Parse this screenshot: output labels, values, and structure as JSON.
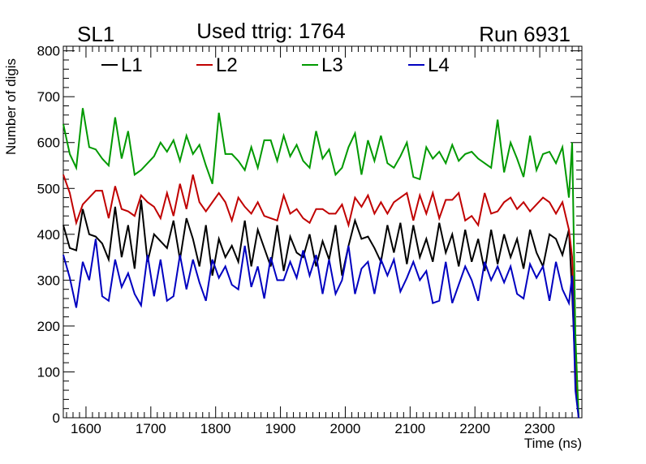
{
  "header": {
    "left": "SL1",
    "center": "Used ttrig: 1764",
    "right": "Run 6931"
  },
  "chart_data": {
    "type": "line",
    "title": "Used ttrig: 1764",
    "xlabel": "Time (ns)",
    "ylabel": "Number of digis",
    "xlim": [
      1565,
      2365
    ],
    "ylim": [
      0,
      810
    ],
    "x_ticks": [
      1600,
      1700,
      1800,
      1900,
      2000,
      2100,
      2200,
      2300
    ],
    "y_ticks": [
      0,
      100,
      200,
      300,
      400,
      500,
      600,
      700,
      800
    ],
    "grid": false,
    "legend": {
      "placement": "top-left"
    },
    "x": [
      1565,
      1575,
      1585,
      1595,
      1605,
      1615,
      1625,
      1635,
      1645,
      1655,
      1665,
      1675,
      1685,
      1695,
      1705,
      1715,
      1725,
      1735,
      1745,
      1755,
      1765,
      1775,
      1785,
      1795,
      1805,
      1815,
      1825,
      1835,
      1845,
      1855,
      1865,
      1875,
      1885,
      1895,
      1905,
      1915,
      1925,
      1935,
      1945,
      1955,
      1965,
      1975,
      1985,
      1995,
      2005,
      2015,
      2025,
      2035,
      2045,
      2055,
      2065,
      2075,
      2085,
      2095,
      2105,
      2115,
      2125,
      2135,
      2145,
      2155,
      2165,
      2175,
      2185,
      2195,
      2205,
      2215,
      2225,
      2235,
      2245,
      2255,
      2265,
      2275,
      2285,
      2295,
      2305,
      2315,
      2325,
      2335,
      2345,
      2350,
      2355,
      2360
    ],
    "series": [
      {
        "name": "L1",
        "color": "#000000",
        "values": [
          420,
          370,
          365,
          455,
          400,
          395,
          380,
          345,
          460,
          350,
          420,
          325,
          475,
          340,
          400,
          385,
          370,
          430,
          345,
          435,
          390,
          330,
          420,
          310,
          390,
          350,
          375,
          340,
          430,
          330,
          410,
          370,
          330,
          420,
          320,
          395,
          360,
          350,
          400,
          330,
          385,
          345,
          420,
          310,
          375,
          430,
          390,
          395,
          370,
          340,
          420,
          360,
          425,
          335,
          420,
          350,
          390,
          340,
          425,
          360,
          400,
          330,
          410,
          340,
          390,
          320,
          410,
          335,
          400,
          350,
          390,
          325,
          410,
          360,
          330,
          400,
          390,
          355,
          410,
          270,
          100,
          0
        ]
      },
      {
        "name": "L2",
        "color": "#c00000",
        "values": [
          530,
          490,
          425,
          465,
          480,
          495,
          495,
          435,
          505,
          455,
          450,
          440,
          485,
          470,
          460,
          435,
          490,
          440,
          510,
          455,
          530,
          470,
          450,
          470,
          490,
          470,
          430,
          480,
          460,
          445,
          470,
          440,
          435,
          430,
          485,
          445,
          455,
          435,
          425,
          455,
          455,
          445,
          445,
          465,
          420,
          480,
          460,
          485,
          445,
          470,
          445,
          470,
          480,
          490,
          430,
          485,
          445,
          490,
          435,
          475,
          475,
          490,
          430,
          440,
          420,
          490,
          445,
          450,
          470,
          480,
          455,
          470,
          450,
          465,
          480,
          470,
          445,
          470,
          410,
          350,
          140,
          0
        ]
      },
      {
        "name": "L3",
        "color": "#009900",
        "values": [
          640,
          575,
          545,
          675,
          590,
          585,
          565,
          550,
          655,
          565,
          625,
          530,
          540,
          555,
          570,
          600,
          580,
          605,
          560,
          615,
          575,
          595,
          550,
          510,
          665,
          575,
          575,
          560,
          540,
          590,
          545,
          605,
          605,
          560,
          615,
          570,
          595,
          560,
          545,
          625,
          565,
          585,
          530,
          545,
          590,
          620,
          530,
          605,
          560,
          615,
          555,
          545,
          570,
          600,
          525,
          520,
          590,
          565,
          580,
          555,
          595,
          560,
          575,
          580,
          565,
          555,
          545,
          650,
          535,
          600,
          565,
          525,
          615,
          540,
          575,
          580,
          555,
          590,
          480,
          600,
          180,
          0
        ]
      },
      {
        "name": "L4",
        "color": "#0000c0",
        "values": [
          355,
          305,
          240,
          340,
          300,
          390,
          265,
          255,
          345,
          285,
          315,
          270,
          245,
          355,
          265,
          345,
          255,
          265,
          355,
          280,
          345,
          295,
          255,
          345,
          305,
          330,
          290,
          280,
          375,
          285,
          330,
          260,
          350,
          300,
          300,
          340,
          305,
          365,
          310,
          355,
          270,
          345,
          270,
          300,
          375,
          270,
          325,
          340,
          270,
          345,
          310,
          345,
          275,
          305,
          340,
          300,
          320,
          250,
          255,
          340,
          250,
          290,
          330,
          300,
          255,
          340,
          300,
          330,
          295,
          330,
          270,
          260,
          335,
          305,
          330,
          255,
          340,
          280,
          250,
          310,
          60,
          0
        ]
      }
    ]
  }
}
